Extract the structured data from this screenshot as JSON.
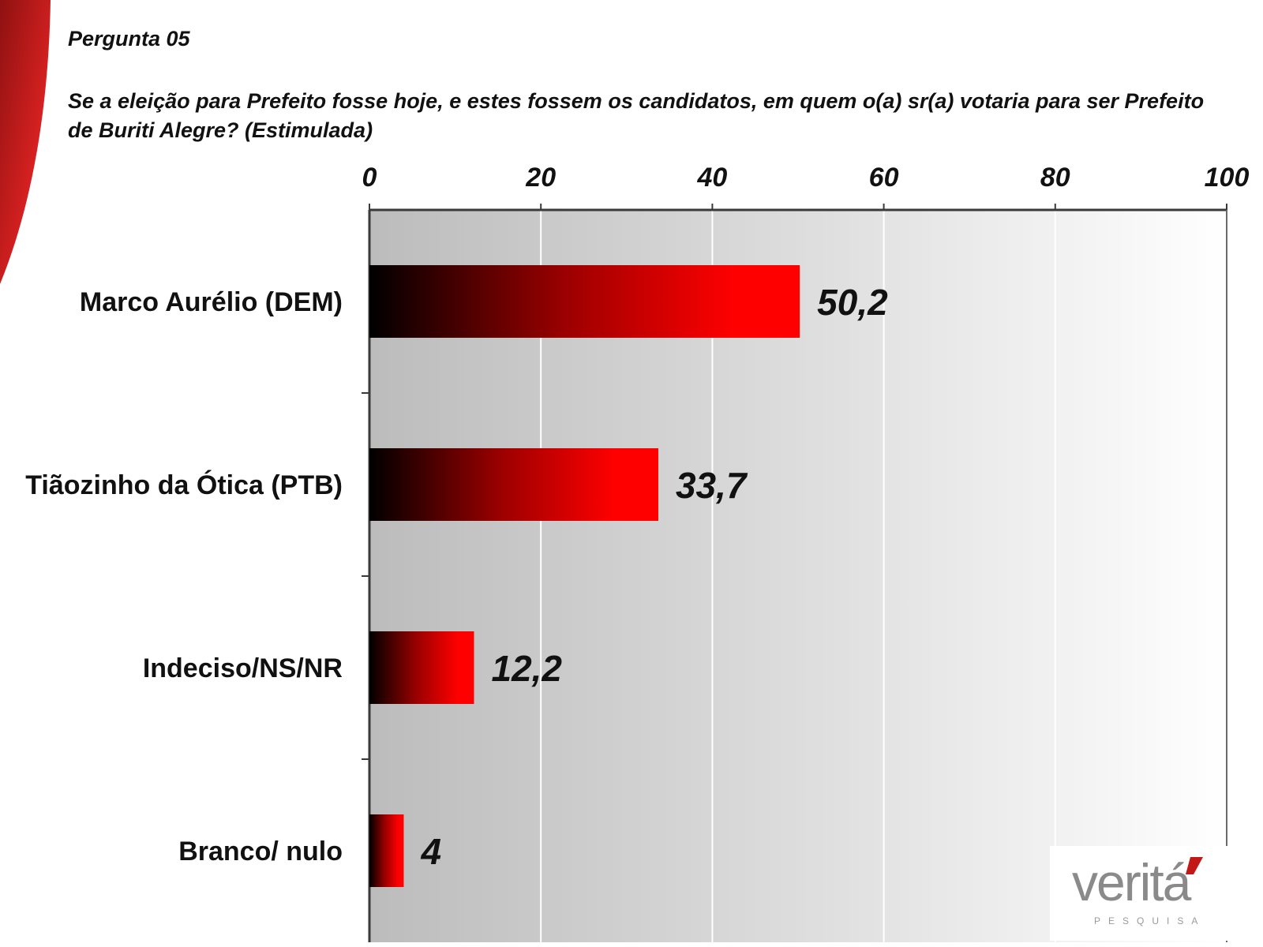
{
  "slide": {
    "heading": "Pergunta 05",
    "question": "Se a eleição para Prefeito fosse hoje, e estes fossem os candidatos, em quem o(a) sr(a) votaria para ser Prefeito de Buriti Alegre? (Estimulada)"
  },
  "logo": {
    "word": "veritá",
    "sub": "PESQUISA"
  },
  "colors": {
    "bar_start": "#000000",
    "bar_end": "#ff0000",
    "swoosh": "#c21818",
    "plot_dark": "#bdbdbd",
    "plot_light": "#ffffff"
  },
  "chart_data": {
    "type": "bar",
    "orientation": "horizontal",
    "title": "",
    "xlabel": "",
    "ylabel": "",
    "categories": [
      "Marco Aurélio (DEM)",
      "Tiãozinho da Ótica (PTB)",
      "Indeciso/NS/NR",
      "Branco/ nulo"
    ],
    "values": [
      50.2,
      33.7,
      12.2,
      4
    ],
    "value_labels": [
      "50,2",
      "33,7",
      "12,2",
      "4"
    ],
    "xlim": [
      0,
      100
    ],
    "x_ticks": [
      0,
      20,
      40,
      60,
      80,
      100
    ],
    "x_tick_labels": [
      "0",
      "20",
      "40",
      "60",
      "80",
      "100"
    ],
    "axis_position": "top",
    "grid": true,
    "legend": "none"
  }
}
